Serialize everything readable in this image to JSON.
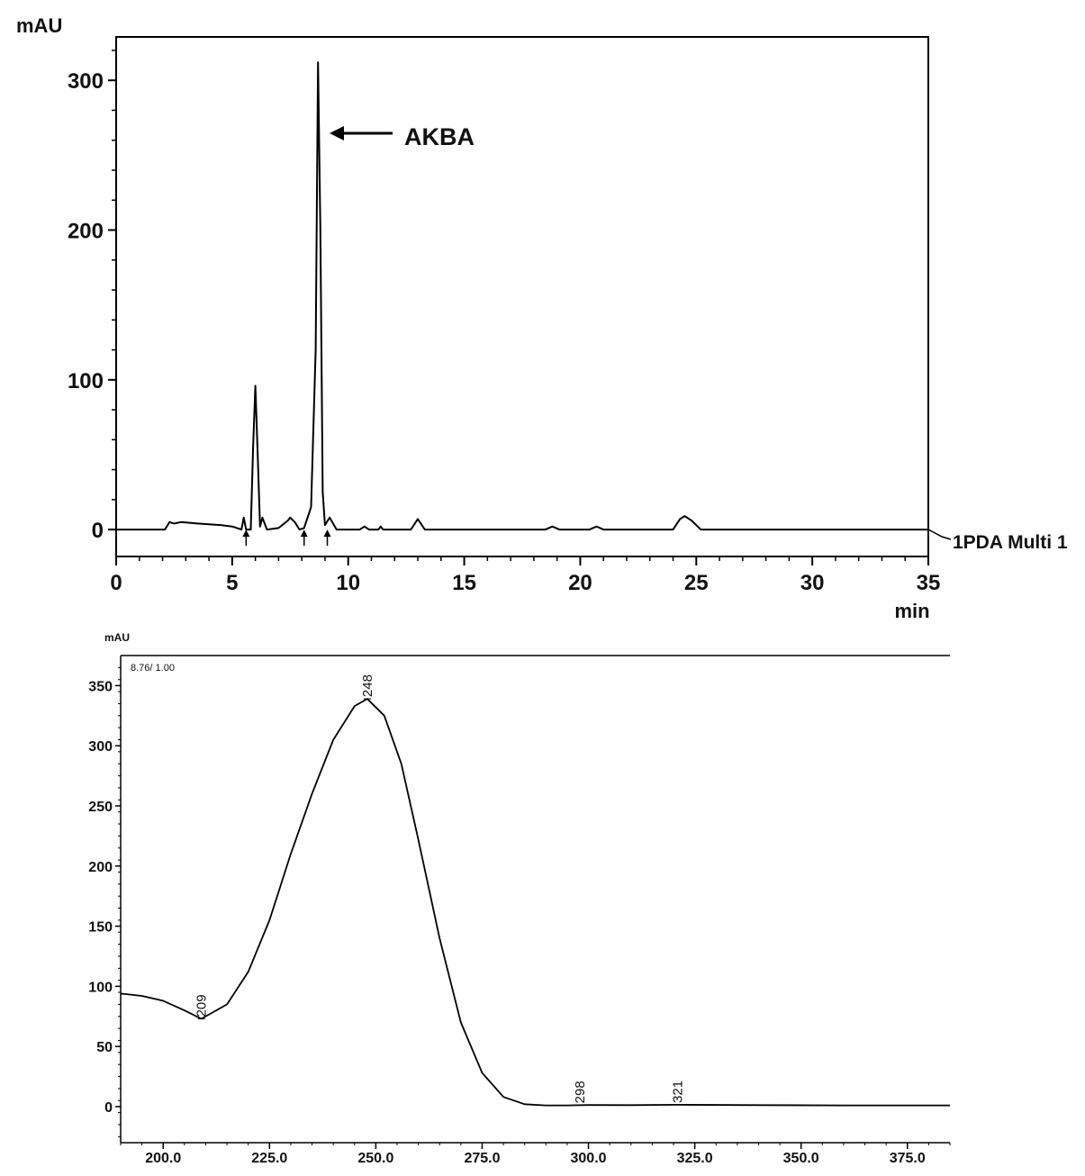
{
  "chart_data": [
    {
      "type": "line",
      "title": "",
      "ylabel": "mAU",
      "xlabel": "min",
      "xlim": [
        0,
        35
      ],
      "ylim": [
        -18,
        329
      ],
      "x_ticks": [
        "0",
        "5",
        "10",
        "15",
        "20",
        "25",
        "30",
        "35"
      ],
      "y_ticks": [
        "0",
        "100",
        "200",
        "300"
      ],
      "grid": false,
      "annotation": "AKBA",
      "trace_label": "1PDA Multi 1",
      "series": [
        {
          "x": [
            0,
            2.1,
            2.3,
            2.5,
            2.8,
            3.5,
            4.5,
            5.0,
            5.4,
            5.5,
            5.6,
            5.8,
            5.9,
            6.0,
            6.1,
            6.2,
            6.3,
            6.5,
            7.0,
            7.4,
            7.5,
            7.7,
            7.9,
            8.1,
            8.4,
            8.6,
            8.7,
            8.8,
            8.9,
            9.0,
            9.2,
            9.5,
            10.5,
            10.7,
            10.9,
            11.3,
            11.4,
            11.5,
            12.7,
            13.0,
            13.3,
            18.5,
            18.8,
            19.1,
            20.4,
            20.7,
            21.0,
            24.0,
            24.3,
            24.5,
            24.8,
            25.2,
            29.5,
            35
          ],
          "y": [
            0,
            0,
            5,
            4,
            5,
            4,
            3,
            2,
            0,
            8,
            0,
            0,
            55,
            96,
            50,
            2,
            8,
            0,
            1,
            6,
            8,
            5,
            0,
            1,
            15,
            120,
            312,
            200,
            25,
            3,
            8,
            0,
            0,
            2,
            0,
            0,
            2,
            0,
            0,
            7,
            0,
            0,
            2,
            0,
            0,
            2,
            0,
            0,
            7,
            9,
            6,
            0,
            0,
            0
          ]
        }
      ],
      "markers": [
        5.6,
        8.1,
        9.1
      ]
    },
    {
      "type": "line",
      "title": "",
      "ylabel": "mAU",
      "xlabel": "",
      "xlim": [
        190,
        385
      ],
      "ylim": [
        -30,
        375
      ],
      "x_ticks": [
        "200.0",
        "225.0",
        "250.0",
        "275.0",
        "300.0",
        "325.0",
        "350.0",
        "375.0"
      ],
      "y_ticks": [
        "0",
        "50",
        "100",
        "150",
        "200",
        "250",
        "300",
        "350"
      ],
      "grid": false,
      "info_label": "8.76/ 1.00",
      "peak_labels": [
        "209",
        "248",
        "298",
        "321"
      ],
      "series": [
        {
          "x": [
            190,
            195,
            200,
            205,
            209,
            215,
            220,
            225,
            230,
            235,
            240,
            245,
            248,
            252,
            256,
            260,
            265,
            270,
            275,
            280,
            285,
            290,
            295,
            300,
            310,
            321,
            340,
            360,
            385
          ],
          "y": [
            94,
            92,
            88,
            80,
            73,
            85,
            112,
            155,
            210,
            260,
            305,
            333,
            339,
            325,
            285,
            222,
            140,
            70,
            28,
            8,
            2,
            1,
            1,
            1.3,
            1.2,
            1.5,
            1.2,
            1,
            1
          ]
        }
      ]
    }
  ]
}
